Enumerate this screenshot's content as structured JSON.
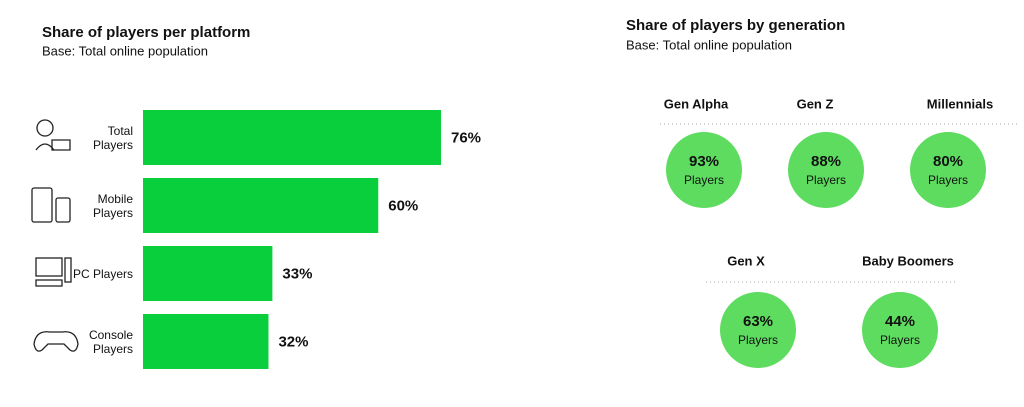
{
  "chart_data": [
    {
      "type": "hbar",
      "title": "Share of players per platform",
      "subtitle": "Base: Total online population",
      "categories": [
        "Total Players",
        "Mobile Players",
        "PC Players",
        "Console Players"
      ],
      "values": [
        76,
        60,
        33,
        32
      ],
      "value_labels": [
        "76%",
        "60%",
        "33%",
        "32%"
      ],
      "color": "#0acf3c"
    },
    {
      "type": "circles",
      "title": "Share of players by generation",
      "subtitle": "Base: Total online population",
      "categories": [
        "Gen Alpha",
        "Gen Z",
        "Millennials",
        "Gen X",
        "Baby Boomers"
      ],
      "values": [
        93,
        88,
        80,
        63,
        44
      ],
      "value_labels": [
        "93%",
        "88%",
        "80%",
        "63%",
        "44%"
      ],
      "unit_label": "Players",
      "color": "#5ddc5f"
    }
  ]
}
